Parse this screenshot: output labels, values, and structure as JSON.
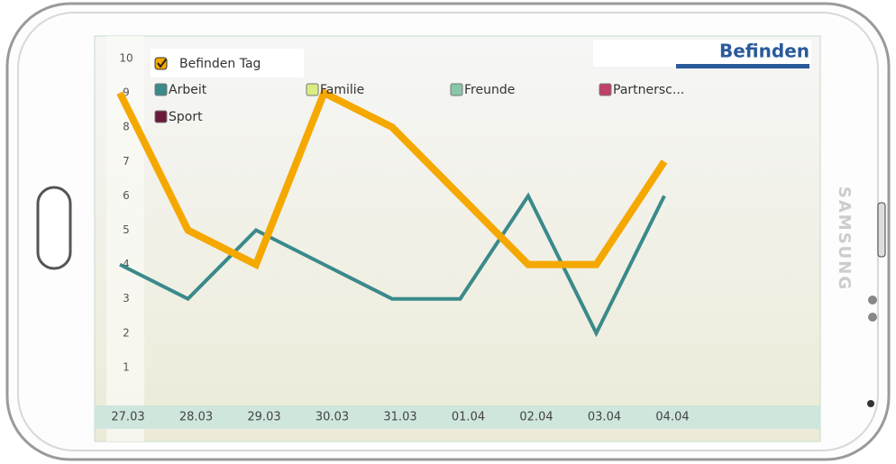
{
  "device_brand": "SAMSUNG",
  "chart_data": {
    "type": "line",
    "title": "Befinden",
    "categories": [
      "27.03",
      "28.03",
      "29.03",
      "30.03",
      "31.03",
      "01.04",
      "02.04",
      "03.04",
      "04.04"
    ],
    "series": [
      {
        "name": "Befinden Tag",
        "color": "#f5a800",
        "values": [
          9,
          5,
          4,
          9,
          8,
          6,
          4,
          4,
          7
        ]
      },
      {
        "name": "Arbeit",
        "color": "#3a8a8a",
        "values": [
          4,
          3,
          5,
          4,
          3,
          3,
          6,
          2,
          6
        ]
      },
      {
        "name": "Familie",
        "color": "#d8ee80",
        "values": [
          null,
          null,
          null,
          null,
          null,
          null,
          null,
          null,
          null
        ]
      },
      {
        "name": "Freunde",
        "color": "#88c8a8",
        "values": [
          null,
          null,
          null,
          null,
          null,
          null,
          null,
          null,
          null
        ]
      },
      {
        "name": "Partnersc...",
        "color": "#c0406a",
        "values": [
          null,
          null,
          null,
          null,
          null,
          null,
          null,
          null,
          null
        ]
      },
      {
        "name": "Sport",
        "color": "#6a1a3a",
        "values": [
          null,
          null,
          null,
          null,
          null,
          null,
          null,
          null,
          null
        ]
      }
    ],
    "ylim": [
      0,
      10
    ],
    "yticks": [
      1,
      2,
      3,
      4,
      5,
      6,
      7,
      8,
      9,
      10
    ],
    "grid": false
  }
}
